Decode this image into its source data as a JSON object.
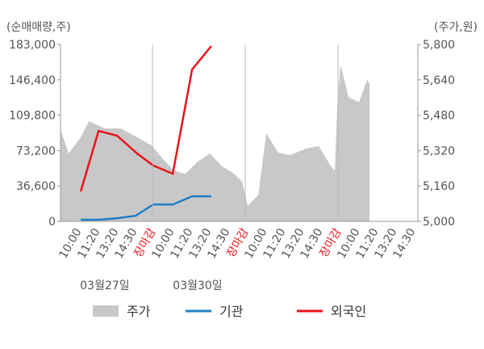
{
  "chart_data": {
    "type": "line",
    "y_label": "(순매매량,주)",
    "y2_label": "(주가,원)",
    "xlim": [
      -0.96,
      18.3
    ],
    "xticks": [
      {
        "value": 0,
        "label": "10:00"
      },
      {
        "value": 1,
        "label": "11:20"
      },
      {
        "value": 2,
        "label": "13:20"
      },
      {
        "value": 3,
        "label": "14:30"
      },
      {
        "value": 4,
        "label": "장마감",
        "color": "#e8151b"
      },
      {
        "value": 5,
        "label": "10:00"
      },
      {
        "value": 6,
        "label": "11:20"
      },
      {
        "value": 7,
        "label": "13:20"
      },
      {
        "value": 8,
        "label": "14:30"
      },
      {
        "value": 9,
        "label": "장마감",
        "color": "#e8151b"
      },
      {
        "value": 10,
        "label": "10:00"
      },
      {
        "value": 11,
        "label": "11:20"
      },
      {
        "value": 12,
        "label": "13:20"
      },
      {
        "value": 13,
        "label": "14:30"
      },
      {
        "value": 14,
        "label": "장마감",
        "color": "#e8151b"
      },
      {
        "value": 15,
        "label": "10:00"
      },
      {
        "value": 16,
        "label": "11:20"
      },
      {
        "value": 17,
        "label": "13:20"
      },
      {
        "value": 18,
        "label": "14:30"
      }
    ],
    "ylim": [
      0,
      183000
    ],
    "yticks": [
      0,
      {
        "value": 36600,
        "label": "36,600"
      },
      {
        "value": 73200,
        "label": "73,200"
      },
      {
        "value": 109800,
        "label": "109,800"
      },
      {
        "value": 146400,
        "label": "146,400"
      },
      {
        "value": 183000,
        "label": "183,000"
      }
    ],
    "y2lim": [
      5000,
      5800
    ],
    "y2ticks": [
      {
        "value": 5000,
        "label": "5,000"
      },
      {
        "value": 5160,
        "label": "5,160"
      },
      {
        "value": 5320,
        "label": "5,320"
      },
      {
        "value": 5480,
        "label": "5,480"
      },
      {
        "value": 5640,
        "label": "5,640"
      },
      {
        "value": 5800,
        "label": "5,800"
      }
    ],
    "annotations": [
      {
        "text": "03월27일",
        "x": 1.43
      },
      {
        "text": "03월30일",
        "x": 6.43
      }
    ],
    "series": [
      {
        "name": "주가",
        "type": "area",
        "axis": "y2",
        "color": "#c8c8c8",
        "x": [
          -0.96,
          -0.52,
          0.13,
          0.57,
          1.43,
          2.3,
          3.17,
          3.96,
          4.48,
          5.13,
          5.78,
          6.43,
          7.09,
          7.74,
          8.39,
          8.83,
          9.13,
          9.7,
          10.13,
          10.78,
          11.43,
          12.3,
          12.96,
          13.61,
          13.83,
          13.96,
          14.13,
          14.57,
          15.13,
          15.57,
          15.7
        ],
        "values": [
          5416,
          5307,
          5380,
          5453,
          5420,
          5420,
          5380,
          5343,
          5290,
          5230,
          5215,
          5270,
          5307,
          5250,
          5215,
          5179,
          5069,
          5120,
          5398,
          5310,
          5300,
          5330,
          5340,
          5250,
          5230,
          5526,
          5709,
          5560,
          5540,
          5640,
          5620
        ]
      },
      {
        "name": "기관",
        "color": "#1f7fc4",
        "x": [
          0.13,
          1.09,
          2.09,
          3.09,
          4.04,
          5.09,
          6.13,
          7.17
        ],
        "values": [
          1700,
          1700,
          3300,
          5800,
          17500,
          17500,
          25900,
          25900
        ]
      },
      {
        "name": "외국인",
        "color": "#e8151b",
        "x": [
          0.13,
          1.09,
          2.09,
          3.17,
          4.04,
          5.09,
          6.13,
          7.17
        ],
        "values": [
          31000,
          93600,
          88600,
          70200,
          57700,
          49300,
          157100,
          181300
        ]
      }
    ]
  }
}
